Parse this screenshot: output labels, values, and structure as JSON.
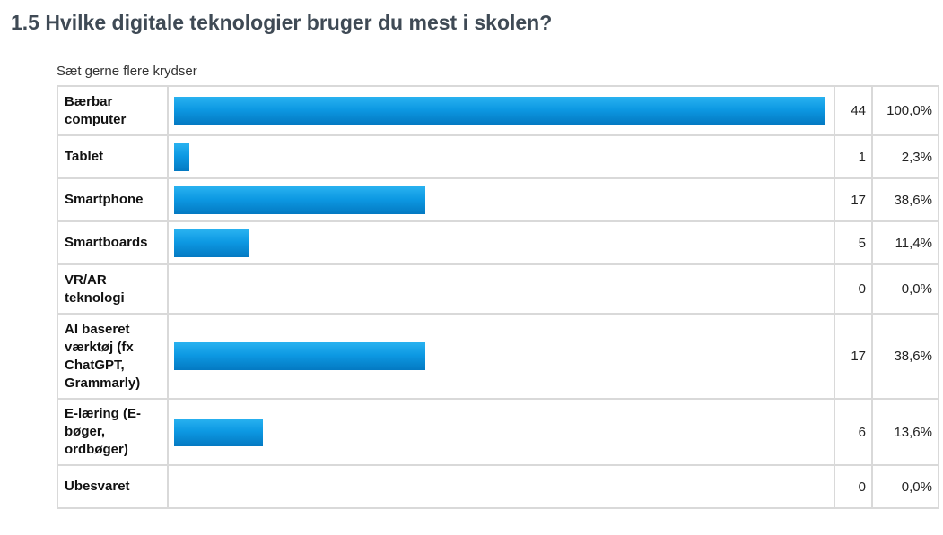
{
  "page": {
    "title": "1.5 Hvilke digitale teknologier bruger du mest i skolen?",
    "subtitle": "Sæt gerne flere krydser",
    "bar_color": "#0d99e3"
  },
  "chart_data": {
    "type": "bar",
    "orientation": "horizontal",
    "title": "1.5 Hvilke digitale teknologier bruger du mest i skolen?",
    "subtitle": "Sæt gerne flere krydser",
    "xlim": [
      0,
      100
    ],
    "rows": [
      {
        "label": "Bærbar computer",
        "count": "44",
        "percent": "100,0%",
        "value": 100.0
      },
      {
        "label": "Tablet",
        "count": "1",
        "percent": "2,3%",
        "value": 2.3
      },
      {
        "label": "Smartphone",
        "count": "17",
        "percent": "38,6%",
        "value": 38.6
      },
      {
        "label": "Smartboards",
        "count": "5",
        "percent": "11,4%",
        "value": 11.4
      },
      {
        "label": "VR/AR teknologi",
        "count": "0",
        "percent": "0,0%",
        "value": 0.0
      },
      {
        "label": "AI baseret værktøj (fx ChatGPT, Grammarly)",
        "count": "17",
        "percent": "38,6%",
        "value": 38.6
      },
      {
        "label": "E-læring (E-bøger, ordbøger)",
        "count": "6",
        "percent": "13,6%",
        "value": 13.6
      },
      {
        "label": "Ubesvaret",
        "count": "0",
        "percent": "0,0%",
        "value": 0.0
      }
    ]
  }
}
